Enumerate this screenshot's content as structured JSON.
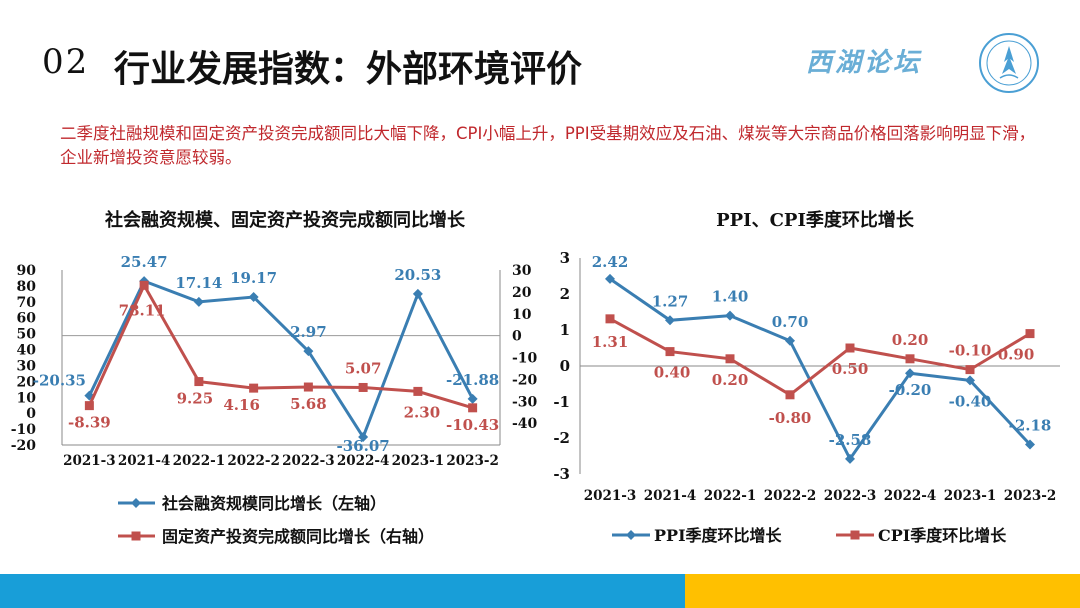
{
  "header": {
    "number": "02",
    "title": "行业发展指数：外部环境评价",
    "brand": "西湖论坛"
  },
  "summary": "二季度社融规模和固定资产投资完成额同比大幅下降，CPI小幅上升，PPI受基期效应及石油、煤炭等大宗商品价格回落影响明显下滑，企业新增投资意愿较弱。",
  "chart_data": [
    {
      "type": "line",
      "title": "社会融资规模、固定资产投资完成额同比增长",
      "categories": [
        "2021-3",
        "2021-4",
        "2022-1",
        "2022-2",
        "2022-3",
        "2022-4",
        "2023-1",
        "2023-2"
      ],
      "y_left": {
        "ylim": [
          -20,
          90
        ],
        "ticks": [
          90,
          80,
          70,
          60,
          50,
          40,
          30,
          20,
          10,
          0,
          -10,
          -20
        ]
      },
      "y_right": {
        "ylim": [
          -50,
          30
        ],
        "ticks": [
          30,
          20,
          10,
          0,
          -10,
          -20,
          -30,
          -40
        ]
      },
      "series": [
        {
          "name": "社会融资规模同比增长（左轴）",
          "axis": "left",
          "color": "#3a7eb2",
          "values": [
            -20.35,
            25.47,
            17.14,
            19.17,
            2.97,
            -36.07,
            20.53,
            -21.88
          ],
          "labels": [
            "-20.35",
            "25.47",
            "17.14",
            "19.17",
            "2.97",
            "-36.07",
            "20.53",
            "-21.88"
          ],
          "plotted": [
            11,
            83,
            70,
            73,
            39,
            -15,
            75,
            9
          ]
        },
        {
          "name": "固定资产投资完成额同比增长（右轴）",
          "axis": "right",
          "color": "#c0504d",
          "values": [
            -8.39,
            78.11,
            9.25,
            4.16,
            5.68,
            5.07,
            2.3,
            -10.43
          ],
          "labels": [
            "-8.39",
            "78.11",
            "9.25",
            "4.16",
            "5.68",
            "5.07",
            "2.30",
            "-10.43"
          ],
          "plotted": [
            -32,
            23,
            -21,
            -24,
            -23.5,
            -23.7,
            -25.5,
            -33
          ]
        }
      ],
      "legend_position": "bottom"
    },
    {
      "type": "line",
      "title": "PPI、CPI季度环比增长",
      "categories": [
        "2021-3",
        "2021-4",
        "2022-1",
        "2022-2",
        "2022-3",
        "2022-4",
        "2023-1",
        "2023-2"
      ],
      "ylim": [
        -3,
        3
      ],
      "ticks": [
        3,
        2,
        1,
        0,
        -1,
        -2,
        -3
      ],
      "series": [
        {
          "name": "PPI季度环比增长",
          "color": "#3a7eb2",
          "marker": "diamond",
          "values": [
            2.42,
            1.27,
            1.4,
            0.7,
            -2.58,
            -0.2,
            -0.4,
            -2.18
          ],
          "labels": [
            "2.42",
            "1.27",
            "1.40",
            "0.70",
            "-2.58",
            "-0.20",
            "-0.40",
            "-2.18"
          ]
        },
        {
          "name": "CPI季度环比增长",
          "color": "#c0504d",
          "marker": "square",
          "values": [
            1.31,
            0.4,
            0.2,
            -0.8,
            0.5,
            0.2,
            -0.1,
            0.9
          ],
          "labels": [
            "1.31",
            "0.40",
            "0.20",
            "-0.80",
            "0.50",
            "0.20",
            "-0.10",
            "0.90"
          ]
        }
      ],
      "legend_position": "bottom"
    }
  ],
  "colors": {
    "footer_blue": "#189ed8",
    "footer_yellow": "#ffc000",
    "summary_text": "#c0282d",
    "brand": "#6aaed6"
  }
}
